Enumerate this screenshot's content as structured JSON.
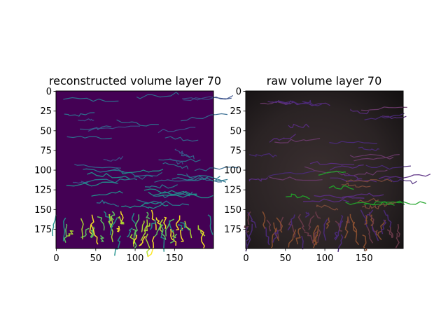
{
  "chart_data": [
    {
      "type": "heatmap",
      "title": "reconstructed volume layer 70",
      "xlabel": "",
      "ylabel": "",
      "xlim": [
        0,
        199
      ],
      "ylim": [
        199,
        0
      ],
      "x_ticks": [
        0,
        50,
        100,
        150
      ],
      "y_ticks": [
        0,
        25,
        50,
        75,
        100,
        125,
        150,
        175
      ],
      "colormap": "viridis",
      "background_color": "#440154",
      "grid": false,
      "legend": "none"
    },
    {
      "type": "heatmap",
      "title": "raw volume layer 70",
      "xlabel": "",
      "ylabel": "",
      "xlim": [
        0,
        199
      ],
      "ylim": [
        199,
        0
      ],
      "x_ticks": [
        0,
        50,
        100,
        150
      ],
      "y_ticks": [
        0,
        25,
        50,
        75,
        100,
        125,
        150,
        175
      ],
      "colormap": "rgb",
      "background_color": "#1e1a1a",
      "grid": false,
      "legend": "none"
    }
  ]
}
